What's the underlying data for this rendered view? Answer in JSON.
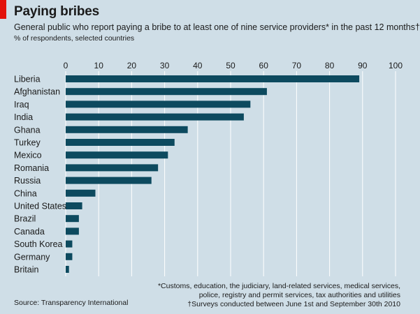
{
  "title": "Paying bribes",
  "subtitle": "General public who report paying a bribe to at least one of nine service providers* in the past 12 months†",
  "unit_label": "% of respondents, selected countries",
  "footnotes": {
    "line1": "*Customs, education, the judiciary, land-related services, medical services,",
    "line2": "police, registry and permit services, tax authorities and utilities",
    "line3": "†Surveys conducted between June 1st and September 30th 2010"
  },
  "source": "Source: Transparency International",
  "colors": {
    "bar": "#0d4a5f",
    "grid": "#ffffff",
    "background": "#cfdee7",
    "accent": "#e3120b"
  },
  "chart_data": {
    "type": "bar",
    "orientation": "horizontal",
    "categories": [
      "Liberia",
      "Afghanistan",
      "Iraq",
      "India",
      "Ghana",
      "Turkey",
      "Mexico",
      "Romania",
      "Russia",
      "China",
      "United States",
      "Brazil",
      "Canada",
      "South Korea",
      "Germany",
      "Britain"
    ],
    "values": [
      89,
      61,
      56,
      54,
      37,
      33,
      31,
      28,
      26,
      9,
      5,
      4,
      4,
      2,
      2,
      1
    ],
    "xlim": [
      0,
      100
    ],
    "xticks": [
      0,
      10,
      20,
      30,
      40,
      50,
      60,
      70,
      80,
      90,
      100
    ],
    "grid": true,
    "xaxis_position": "top"
  }
}
